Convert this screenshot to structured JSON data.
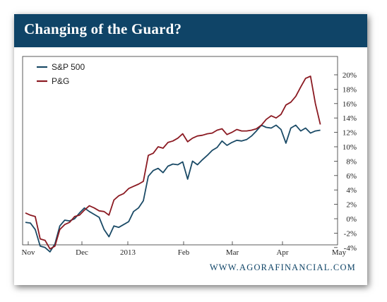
{
  "header": {
    "title": "Changing of the Guard?"
  },
  "footer": {
    "source": "WWW.AGORAFINANCIAL.COM"
  },
  "colors": {
    "banner": "#0f4467",
    "sp500": "#1a4a66",
    "pg": "#8b1a22"
  },
  "chart_data": {
    "type": "line",
    "title": "Changing of the Guard?",
    "xlabel": "",
    "ylabel": "",
    "x_ticks": [
      "Nov",
      "Dec",
      "2013",
      "Feb",
      "Mar",
      "Apr",
      "May"
    ],
    "y_ticks": [
      "20%",
      "18%",
      "16%",
      "14%",
      "12%",
      "10%",
      "8%",
      "6%",
      "4%",
      "2%",
      "0%",
      "-2%",
      "-4%"
    ],
    "ylim": [
      -5,
      21
    ],
    "y_unit": "%",
    "x_unit": "trading days from Nov 1, 2012",
    "xlim": [
      0,
      125
    ],
    "grid": false,
    "legend": "top-left",
    "series": [
      {
        "name": "S&P 500",
        "color": "#1a4a66",
        "x": [
          0,
          2,
          4,
          6,
          8,
          10,
          12,
          14,
          16,
          18,
          20,
          22,
          24,
          26,
          28,
          30,
          32,
          34,
          36,
          38,
          40,
          42,
          44,
          46,
          48,
          50,
          52,
          54,
          56,
          58,
          60,
          62,
          64,
          66,
          68,
          70,
          72,
          74,
          76,
          78,
          80,
          82,
          84,
          86,
          88,
          90,
          92,
          94,
          96,
          98,
          100,
          102,
          104,
          106,
          108,
          110,
          112,
          114,
          116,
          118,
          120
        ],
        "values": [
          -0.5,
          -0.6,
          -1.5,
          -3.8,
          -4.0,
          -4.6,
          -3.5,
          -1.0,
          -0.2,
          -0.3,
          0.0,
          0.8,
          1.5,
          1.0,
          0.6,
          0.2,
          -1.5,
          -2.5,
          -1.0,
          -1.2,
          -0.8,
          -0.4,
          1.0,
          1.5,
          2.5,
          5.9,
          6.7,
          7.0,
          6.4,
          7.3,
          7.6,
          7.5,
          7.9,
          5.5,
          8.0,
          7.5,
          8.2,
          8.8,
          9.5,
          9.9,
          10.8,
          10.2,
          10.6,
          10.9,
          10.8,
          11.0,
          11.5,
          12.2,
          13.0,
          12.7,
          12.6,
          13.0,
          12.4,
          10.5,
          12.6,
          13.0,
          12.2,
          12.6,
          11.9,
          12.2,
          12.3
        ]
      },
      {
        "name": "P&G",
        "color": "#8b1a22",
        "x": [
          0,
          2,
          4,
          6,
          8,
          10,
          12,
          14,
          16,
          18,
          20,
          22,
          24,
          26,
          28,
          30,
          32,
          34,
          36,
          38,
          40,
          42,
          44,
          46,
          48,
          50,
          52,
          54,
          56,
          58,
          60,
          62,
          64,
          66,
          68,
          70,
          72,
          74,
          76,
          78,
          80,
          82,
          84,
          86,
          88,
          90,
          92,
          94,
          96,
          98,
          100,
          102,
          104,
          106,
          108,
          110,
          112,
          114,
          116,
          118,
          120
        ],
        "values": [
          0.8,
          0.5,
          0.3,
          -2.8,
          -3.0,
          -4.2,
          -3.8,
          -1.5,
          -0.8,
          -0.5,
          0.3,
          0.5,
          1.2,
          1.8,
          1.5,
          1.1,
          1.0,
          0.5,
          2.6,
          3.2,
          3.5,
          4.2,
          4.5,
          4.8,
          5.2,
          8.8,
          9.1,
          10.0,
          9.8,
          10.6,
          10.8,
          11.2,
          11.8,
          10.7,
          11.2,
          11.5,
          11.6,
          11.8,
          11.9,
          12.3,
          12.5,
          11.7,
          12.0,
          12.4,
          12.2,
          12.2,
          12.3,
          12.5,
          13.0,
          13.8,
          14.3,
          14.0,
          14.5,
          15.8,
          16.2,
          17.0,
          18.3,
          19.5,
          19.8,
          16.0,
          13.1
        ]
      }
    ]
  }
}
